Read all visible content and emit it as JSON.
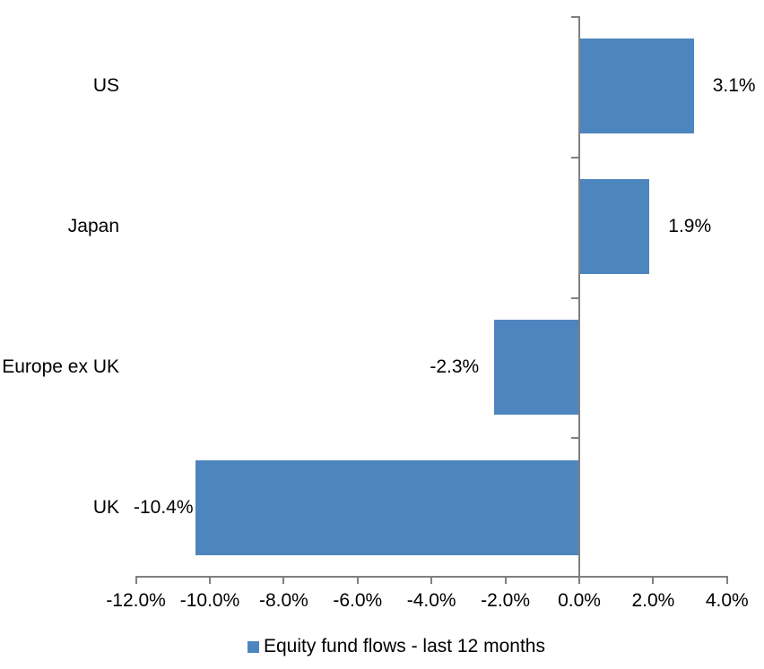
{
  "chart_data": {
    "type": "bar",
    "orientation": "horizontal",
    "title": "",
    "categories": [
      "US",
      "Japan",
      "Europe ex UK",
      "UK"
    ],
    "values": [
      3.1,
      1.9,
      -2.3,
      -10.4
    ],
    "value_labels": [
      "3.1%",
      "1.9%",
      "-2.3%",
      "-10.4%"
    ],
    "series_name": "Equity fund flows - last 12 months",
    "x_axis": {
      "range": [
        -12,
        4
      ],
      "tick_values": [
        -12,
        -10,
        -8,
        -6,
        -4,
        -2,
        0,
        2,
        4
      ],
      "tick_labels": [
        "-12.0%",
        "-10.0%",
        "-8.0%",
        "-6.0%",
        "-4.0%",
        "-2.0%",
        "0.0%",
        "2.0%",
        "4.0%"
      ]
    },
    "legend": {
      "position": "bottom",
      "entries": [
        "Equity fund flows - last 12 months"
      ]
    },
    "grid": false,
    "colors": {
      "bar": "#4d86be",
      "axis": "#808080",
      "text": "#000000",
      "background": "#ffffff"
    }
  }
}
